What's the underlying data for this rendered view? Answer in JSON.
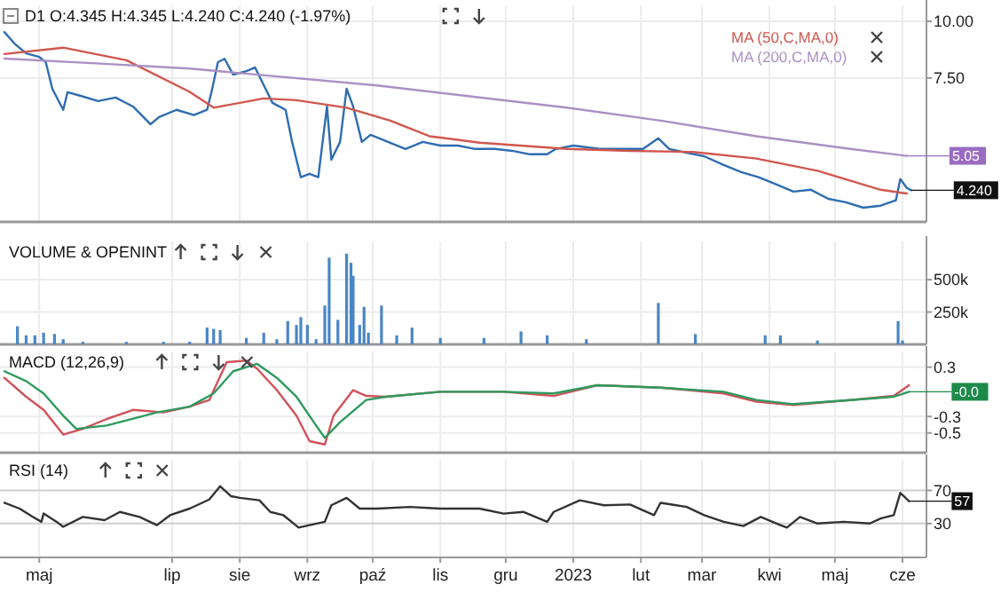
{
  "chart_data": [
    {
      "type": "line",
      "title": "D1 O:4.345 H:4.345 L:4.240 C:4.240 (-1.97%)",
      "log": true,
      "grid": true,
      "legend": "top right",
      "tick_labels": "y",
      "xlim": [
        "2022-04-13",
        "2023-06-12"
      ],
      "ylim": [
        3.61,
        10.85
      ],
      "yticks": [
        {
          "value": 7.5,
          "label": "7.50"
        },
        {
          "value": 10,
          "label": "10.00"
        }
      ],
      "xticks": [
        {
          "value": "2022-05-01",
          "label": null
        },
        {
          "value": "2022-07-01",
          "label": null
        },
        {
          "value": "2022-08-01",
          "label": null
        },
        {
          "value": "2022-09-01",
          "label": null
        },
        {
          "value": "2022-10-01",
          "label": null
        },
        {
          "value": "2022-11-01",
          "label": null
        },
        {
          "value": "2022-12-01",
          "label": null
        },
        {
          "value": "2023-01-01",
          "label": null
        },
        {
          "value": "2023-02-01",
          "label": null
        },
        {
          "value": "2023-03-01",
          "label": null
        },
        {
          "value": "2023-04-01",
          "label": null
        },
        {
          "value": "2023-05-01",
          "label": null
        },
        {
          "value": "2023-06-01",
          "label": null
        }
      ],
      "annotations": [
        {
          "text": "5.05",
          "x": "2023-06-03",
          "y": 5.05
        },
        {
          "text": "4.240",
          "x": "2023-06-05",
          "y": 4.24
        }
      ],
      "series": [
        {
          "color": "#2f6db0",
          "x": [
            "2022-04-15",
            "2022-04-20",
            "2022-04-25",
            "2022-05-01",
            "2022-05-04",
            "2022-05-07",
            "2022-05-12",
            "2022-05-14",
            "2022-05-20",
            "2022-05-28",
            "2022-06-05",
            "2022-06-13",
            "2022-06-21",
            "2022-06-25",
            "2022-07-03",
            "2022-07-11",
            "2022-07-17",
            "2022-07-19",
            "2022-07-22",
            "2022-07-25",
            "2022-07-29",
            "2022-08-04",
            "2022-08-08",
            "2022-08-12",
            "2022-08-16",
            "2022-08-22",
            "2022-08-25",
            "2022-08-29",
            "2022-09-02",
            "2022-09-06",
            "2022-09-10",
            "2022-09-12",
            "2022-09-16",
            "2022-09-19",
            "2022-09-22",
            "2022-09-26",
            "2022-09-30",
            "2022-10-08",
            "2022-10-16",
            "2022-10-24",
            "2022-11-01",
            "2022-11-09",
            "2022-11-17",
            "2022-11-26",
            "2022-12-04",
            "2022-12-12",
            "2022-12-20",
            "2022-12-24",
            "2023-01-01",
            "2023-01-13",
            "2023-01-25",
            "2023-02-02",
            "2023-02-09",
            "2023-02-14",
            "2023-02-22",
            "2023-03-02",
            "2023-03-11",
            "2023-03-19",
            "2023-03-27",
            "2023-04-04",
            "2023-04-12",
            "2023-04-20",
            "2023-04-28",
            "2023-05-06",
            "2023-05-14",
            "2023-05-22",
            "2023-05-29",
            "2023-05-31",
            "2023-06-03",
            "2023-06-05"
          ],
          "values": [
            9.47,
            8.9,
            8.5,
            8.35,
            8.13,
            7.1,
            6.38,
            6.98,
            6.85,
            6.67,
            6.79,
            6.49,
            5.93,
            6.15,
            6.38,
            6.21,
            6.38,
            6.98,
            8.13,
            8.27,
            7.63,
            7.77,
            7.91,
            7.23,
            6.61,
            6.38,
            5.42,
            4.53,
            4.61,
            4.53,
            6.49,
            4.95,
            5.42,
            7.1,
            6.49,
            5.42,
            5.62,
            5.42,
            5.23,
            5.42,
            5.32,
            5.32,
            5.23,
            5.23,
            5.18,
            5.09,
            5.09,
            5.23,
            5.32,
            5.23,
            5.23,
            5.23,
            5.52,
            5.23,
            5.13,
            5.04,
            4.82,
            4.65,
            4.53,
            4.37,
            4.21,
            4.25,
            4.06,
            3.99,
            3.88,
            3.92,
            4.03,
            4.49,
            4.29,
            4.24
          ]
        },
        {
          "name": "MA (50,C,MA,0)",
          "color": "#d0574e",
          "x": [
            "2022-04-15",
            "2022-05-12",
            "2022-06-10",
            "2022-07-09",
            "2022-07-20",
            "2022-08-12",
            "2022-08-27",
            "2022-09-19",
            "2022-10-09",
            "2022-10-27",
            "2022-11-19",
            "2022-12-29",
            "2023-01-27",
            "2023-02-25",
            "2023-03-26",
            "2023-04-23",
            "2023-05-22",
            "2023-06-03"
          ],
          "values": [
            8.47,
            8.75,
            8.21,
            6.99,
            6.45,
            6.76,
            6.7,
            6.45,
            6.04,
            5.58,
            5.4,
            5.23,
            5.18,
            5.15,
            4.98,
            4.68,
            4.25,
            4.17
          ]
        },
        {
          "name": "MA (200,C,MA,0)",
          "color": "#ab90c4",
          "x": [
            "2022-04-15",
            "2022-05-27",
            "2022-07-09",
            "2022-10-03",
            "2022-12-29",
            "2023-02-10",
            "2023-03-26",
            "2023-05-08",
            "2023-06-03"
          ],
          "values": [
            8.28,
            8.08,
            7.87,
            7.22,
            6.45,
            6.04,
            5.58,
            5.23,
            5.05
          ]
        }
      ]
    },
    {
      "type": "bar",
      "title": "VOLUME & OPENINT",
      "grid": true,
      "tick_labels": "y",
      "xlim": [
        "2022-04-13",
        "2023-06-12"
      ],
      "ylim": [
        0,
        795000
      ],
      "yticks": [
        {
          "value": 250000,
          "label": "250k"
        },
        {
          "value": 500000,
          "label": "500k"
        }
      ],
      "xticks": [
        {
          "value": "2022-05-01",
          "label": null
        },
        {
          "value": "2022-07-01",
          "label": null
        },
        {
          "value": "2022-08-01",
          "label": null
        },
        {
          "value": "2022-09-01",
          "label": null
        },
        {
          "value": "2022-10-01",
          "label": null
        },
        {
          "value": "2022-11-01",
          "label": null
        },
        {
          "value": "2022-12-01",
          "label": null
        },
        {
          "value": "2023-01-01",
          "label": null
        },
        {
          "value": "2023-02-01",
          "label": null
        },
        {
          "value": "2023-03-01",
          "label": null
        },
        {
          "value": "2023-04-01",
          "label": null
        },
        {
          "value": "2023-05-01",
          "label": null
        },
        {
          "value": "2023-06-01",
          "label": null
        }
      ],
      "series": [
        {
          "color": "#4a86c5",
          "x": [
            "2022-04-21",
            "2022-04-25",
            "2022-04-29",
            "2022-05-03",
            "2022-05-08",
            "2022-05-12",
            "2022-05-21",
            "2022-06-10",
            "2022-06-27",
            "2022-07-09",
            "2022-07-17",
            "2022-07-20",
            "2022-07-23",
            "2022-08-04",
            "2022-08-12",
            "2022-08-18",
            "2022-08-23",
            "2022-08-27",
            "2022-08-29",
            "2022-09-01",
            "2022-09-05",
            "2022-09-09",
            "2022-09-11",
            "2022-09-15",
            "2022-09-19",
            "2022-09-21",
            "2022-09-22",
            "2022-09-25",
            "2022-09-27",
            "2022-09-29",
            "2022-10-05",
            "2022-10-12",
            "2022-10-19",
            "2022-11-01",
            "2022-11-21",
            "2022-12-08",
            "2022-12-20",
            "2023-01-07",
            "2023-02-09",
            "2023-02-26",
            "2023-03-30",
            "2023-04-06",
            "2023-04-23",
            "2023-05-30",
            "2023-06-01"
          ],
          "values": [
            140000,
            70000,
            70000,
            90000,
            80000,
            40000,
            20000,
            20000,
            20000,
            20000,
            130000,
            120000,
            110000,
            50000,
            90000,
            40000,
            180000,
            150000,
            210000,
            150000,
            40000,
            300000,
            670000,
            190000,
            700000,
            630000,
            530000,
            150000,
            290000,
            90000,
            300000,
            70000,
            130000,
            50000,
            50000,
            100000,
            70000,
            40000,
            320000,
            80000,
            70000,
            70000,
            30000,
            180000,
            30000
          ]
        }
      ]
    },
    {
      "type": "line",
      "title": "MACD (12,26,9)",
      "grid": true,
      "tick_labels": "y",
      "xlim": [
        "2022-04-13",
        "2023-06-12"
      ],
      "ylim": [
        -0.74,
        0.49
      ],
      "yticks": [
        {
          "value": 0.3,
          "label": "0.3"
        },
        {
          "value": -0.3,
          "label": "-0.3"
        },
        {
          "value": -0.5,
          "label": "-0.5"
        }
      ],
      "xticks": [
        {
          "value": "2022-05-01",
          "label": null
        },
        {
          "value": "2022-07-01",
          "label": null
        },
        {
          "value": "2022-08-01",
          "label": null
        },
        {
          "value": "2022-09-01",
          "label": null
        },
        {
          "value": "2022-10-01",
          "label": null
        },
        {
          "value": "2022-11-01",
          "label": null
        },
        {
          "value": "2022-12-01",
          "label": null
        },
        {
          "value": "2023-01-01",
          "label": null
        },
        {
          "value": "2023-02-01",
          "label": null
        },
        {
          "value": "2023-03-01",
          "label": null
        },
        {
          "value": "2023-04-01",
          "label": null
        },
        {
          "value": "2023-05-01",
          "label": null
        },
        {
          "value": "2023-06-01",
          "label": null
        }
      ],
      "annotations": [
        {
          "text": "-0.0",
          "x": "2023-06-04",
          "y": 0
        }
      ],
      "series": [
        {
          "color": "#d0525a",
          "x": [
            "2022-04-15",
            "2022-04-25",
            "2022-05-03",
            "2022-05-12",
            "2022-05-21",
            "2022-06-01",
            "2022-06-13",
            "2022-06-27",
            "2022-07-09",
            "2022-07-18",
            "2022-07-22",
            "2022-07-26",
            "2022-08-04",
            "2022-08-09",
            "2022-08-18",
            "2022-08-27",
            "2022-09-02",
            "2022-09-09",
            "2022-09-13",
            "2022-09-22",
            "2022-09-28",
            "2022-10-07",
            "2022-11-01",
            "2022-11-30",
            "2022-12-23",
            "2023-01-12",
            "2023-02-10",
            "2023-03-11",
            "2023-03-26",
            "2023-04-12",
            "2023-05-08",
            "2023-05-28",
            "2023-06-04"
          ],
          "values": [
            0.17,
            -0.06,
            -0.22,
            -0.52,
            -0.45,
            -0.33,
            -0.22,
            -0.25,
            -0.18,
            -0.1,
            0.13,
            0.36,
            0.38,
            0.28,
            0.02,
            -0.29,
            -0.6,
            -0.64,
            -0.29,
            0.02,
            -0.05,
            -0.06,
            0,
            0,
            -0.05,
            0.08,
            0.05,
            -0.02,
            -0.12,
            -0.16,
            -0.1,
            -0.05,
            0.08
          ]
        },
        {
          "color": "#2e9a5e",
          "x": [
            "2022-04-15",
            "2022-04-25",
            "2022-05-03",
            "2022-05-12",
            "2022-05-18",
            "2022-06-01",
            "2022-06-24",
            "2022-07-09",
            "2022-07-20",
            "2022-07-29",
            "2022-08-09",
            "2022-08-18",
            "2022-08-27",
            "2022-09-05",
            "2022-09-09",
            "2022-09-16",
            "2022-09-28",
            "2022-10-07",
            "2022-11-01",
            "2022-11-30",
            "2022-12-23",
            "2023-01-12",
            "2023-02-10",
            "2023-03-11",
            "2023-03-26",
            "2023-04-12",
            "2023-05-08",
            "2023-05-28",
            "2023-06-04"
          ],
          "values": [
            0.25,
            0.13,
            -0.02,
            -0.29,
            -0.45,
            -0.41,
            -0.25,
            -0.18,
            -0.02,
            0.25,
            0.34,
            0.17,
            -0.06,
            -0.41,
            -0.56,
            -0.37,
            -0.1,
            -0.06,
            0,
            0,
            -0.02,
            0.08,
            0.05,
            0,
            -0.1,
            -0.15,
            -0.1,
            -0.06,
            0
          ]
        }
      ]
    },
    {
      "type": "line",
      "title": "RSI (14)",
      "grid": true,
      "xlim": [
        "2022-04-13",
        "2023-06-12"
      ],
      "ylim": [
        -11,
        107
      ],
      "yticks": [
        30,
        70
      ],
      "xticks": [
        {
          "value": "2022-05-01",
          "label": "maj"
        },
        {
          "value": "2022-07-01",
          "label": "lip"
        },
        {
          "value": "2022-08-01",
          "label": "sie"
        },
        {
          "value": "2022-09-01",
          "label": "wrz"
        },
        {
          "value": "2022-10-01",
          "label": "paź"
        },
        {
          "value": "2022-11-01",
          "label": "lis"
        },
        {
          "value": "2022-12-01",
          "label": "gru"
        },
        {
          "value": "2023-01-01",
          "label": "2023"
        },
        {
          "value": "2023-02-01",
          "label": "lut"
        },
        {
          "value": "2023-03-01",
          "label": "mar"
        },
        {
          "value": "2023-04-01",
          "label": "kwi"
        },
        {
          "value": "2023-05-01",
          "label": "maj"
        },
        {
          "value": "2023-06-01",
          "label": "cze"
        }
      ],
      "annotations": [
        {
          "text": "57",
          "x": "2023-06-04",
          "y": 57
        }
      ],
      "series": [
        {
          "color": "#333333",
          "x": [
            "2022-04-15",
            "2022-04-22",
            "2022-04-28",
            "2022-05-02",
            "2022-05-03",
            "2022-05-09",
            "2022-05-12",
            "2022-05-21",
            "2022-05-31",
            "2022-06-07",
            "2022-06-16",
            "2022-06-24",
            "2022-06-30",
            "2022-07-09",
            "2022-07-18",
            "2022-07-23",
            "2022-07-28",
            "2022-08-01",
            "2022-08-10",
            "2022-08-15",
            "2022-08-21",
            "2022-08-28",
            "2022-09-02",
            "2022-09-09",
            "2022-09-12",
            "2022-09-19",
            "2022-09-25",
            "2022-10-03",
            "2022-10-18",
            "2022-11-01",
            "2022-11-19",
            "2022-11-30",
            "2022-12-09",
            "2022-12-20",
            "2022-12-23",
            "2023-01-04",
            "2023-01-15",
            "2023-01-27",
            "2023-02-07",
            "2023-02-10",
            "2023-02-22",
            "2023-03-02",
            "2023-03-11",
            "2023-03-20",
            "2023-03-28",
            "2023-04-06",
            "2023-04-09",
            "2023-04-15",
            "2023-04-23",
            "2023-05-05",
            "2023-05-17",
            "2023-05-22",
            "2023-05-28",
            "2023-05-31",
            "2023-06-04"
          ],
          "values": [
            55,
            48,
            38,
            32,
            42,
            32,
            26,
            38,
            34,
            44,
            38,
            28,
            40,
            48,
            59,
            75,
            63,
            61,
            58,
            44,
            40,
            25,
            28,
            32,
            52,
            61,
            48,
            48,
            50,
            48,
            48,
            42,
            44,
            32,
            44,
            58,
            52,
            53,
            40,
            55,
            50,
            40,
            32,
            27,
            38,
            28,
            25,
            38,
            30,
            32,
            30,
            36,
            40,
            67,
            57
          ]
        }
      ]
    }
  ]
}
